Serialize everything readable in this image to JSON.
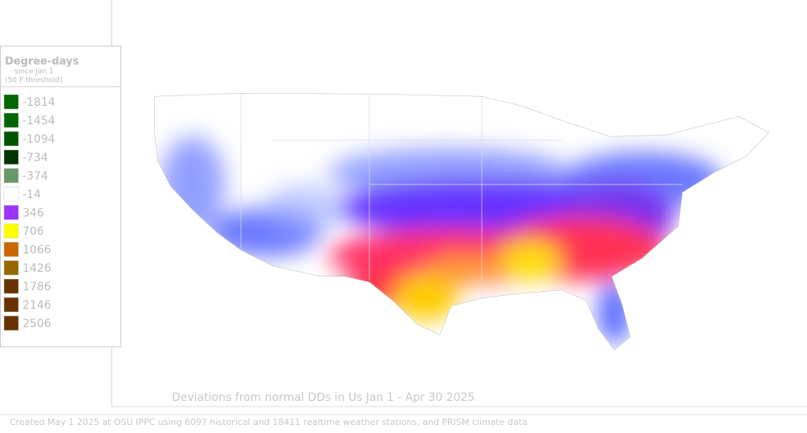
{
  "legend": {
    "title": "Degree-days",
    "subtitle": "since Jan 1",
    "threshold": "(50 F threshold)",
    "items": [
      {
        "label": -1814,
        "color": "#006600"
      },
      {
        "label": -1454,
        "color": "#006600"
      },
      {
        "label": -1094,
        "color": "#005500"
      },
      {
        "label": -734,
        "color": "#003300"
      },
      {
        "label": -374,
        "color": "#669966"
      },
      {
        "label": -14,
        "color": "#ffffff"
      },
      {
        "label": 346,
        "color": "#9933ff"
      },
      {
        "label": 706,
        "color": "#ffff00"
      },
      {
        "label": 1066,
        "color": "#cc6600"
      },
      {
        "label": 1426,
        "color": "#996600"
      },
      {
        "label": 1786,
        "color": "#663300"
      },
      {
        "label": 2146,
        "color": "#663300"
      },
      {
        "label": 2506,
        "color": "#663300"
      }
    ]
  },
  "map": {
    "caption": "Deviations from normal DDs in Us  Jan 1 - Apr 30 2025"
  },
  "footer": "Created May 1 2025 at OSU IPPC using 6097 historical and 18411 realtime weather stations, and PRISM climate data"
}
